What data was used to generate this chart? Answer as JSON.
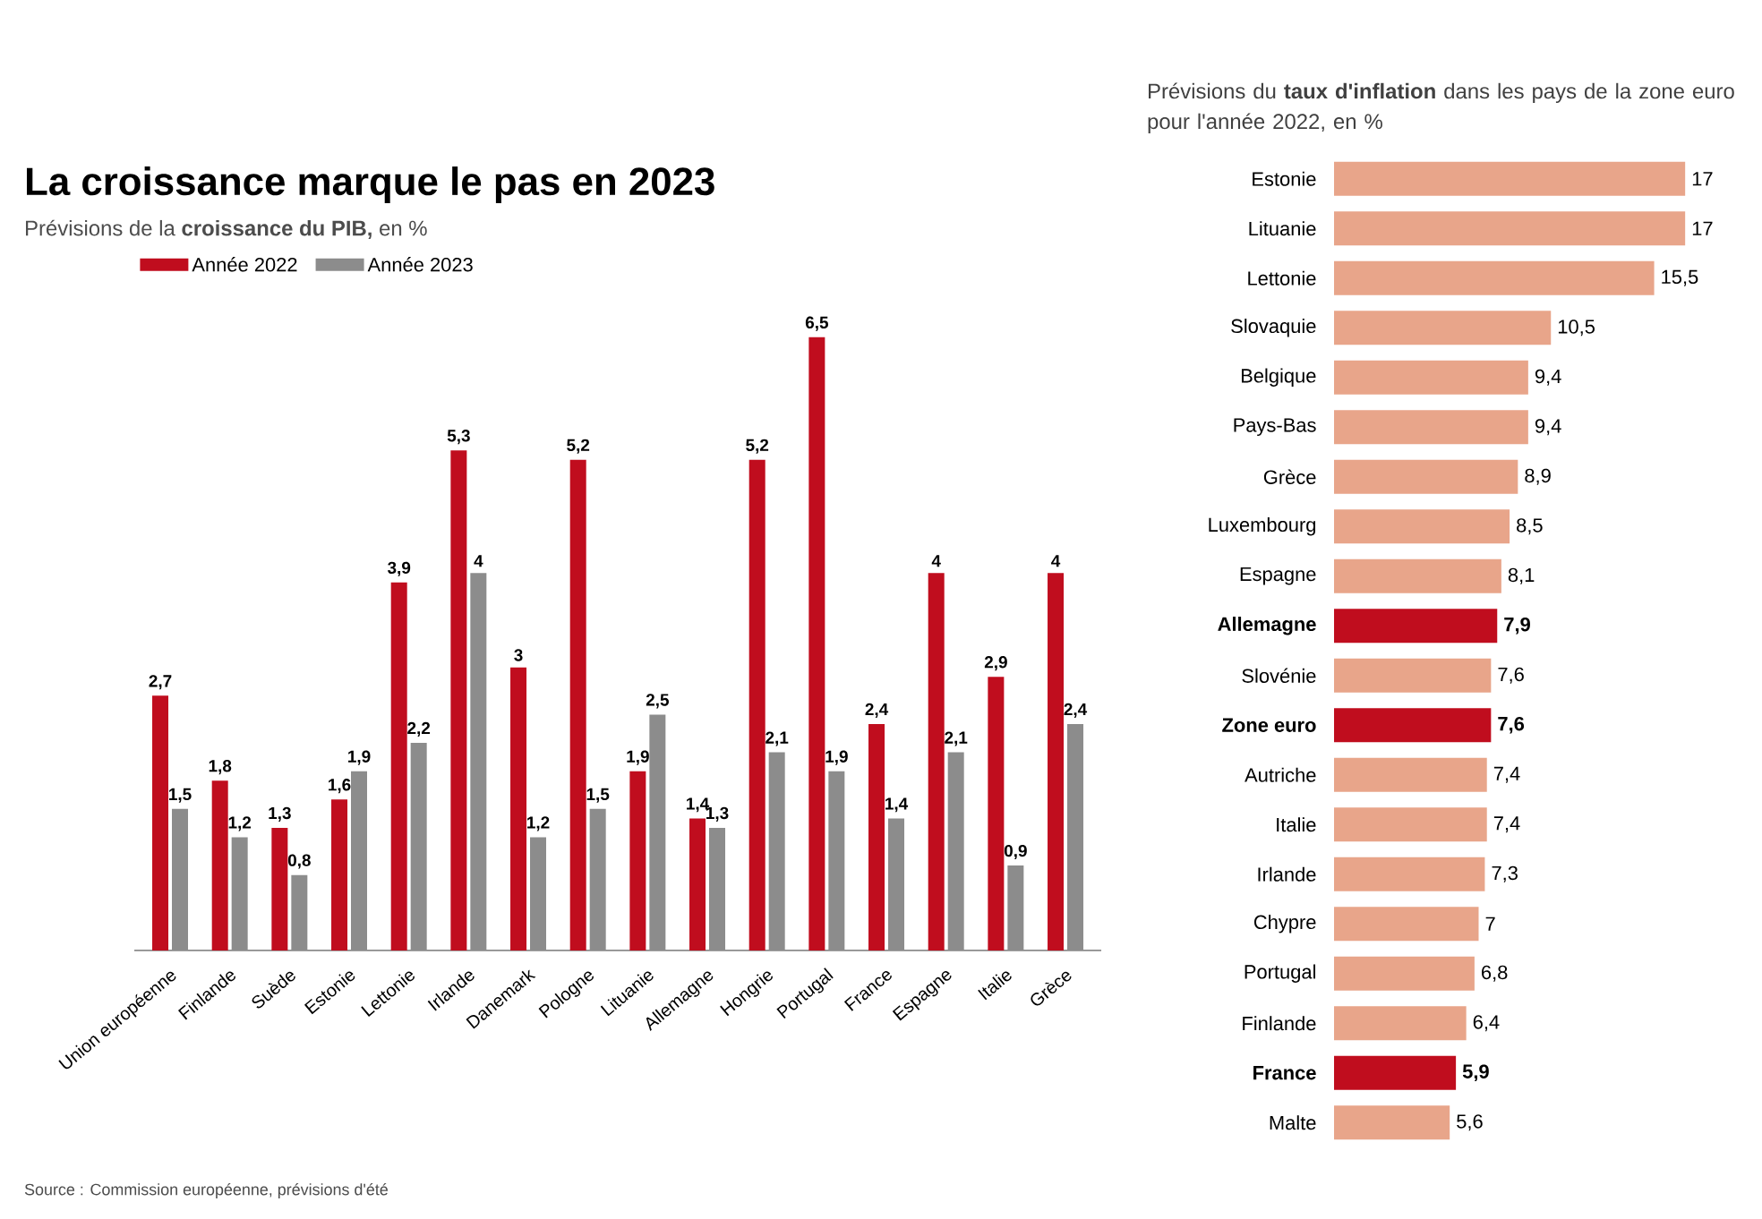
{
  "chart_data": [
    {
      "type": "bar",
      "title": "La croissance marque le pas en 2023",
      "subtitle": "Prévisions de la **croissance du PIB,** en %",
      "categories": [
        "Union européenne",
        "Finlande",
        "Suède",
        "Estonie",
        "Lettonie",
        "Irlande",
        "Danemark",
        "Pologne",
        "Lituanie",
        "Allemagne",
        "Hongrie",
        "Portugal",
        "France",
        "Espagne",
        "Italie",
        "Grèce"
      ],
      "series": [
        {
          "name": "Année 2022",
          "color": "#c00d1e",
          "values": [
            2.7,
            1.8,
            1.3,
            1.6,
            3.9,
            5.3,
            3,
            5.2,
            1.9,
            1.4,
            5.2,
            6.5,
            2.4,
            4,
            2.9,
            4
          ],
          "value_labels": [
            "2,7",
            "1,8",
            "1,3",
            "1,6",
            "3,9",
            "5,3",
            "3",
            "5,2",
            "1,9",
            "1,4",
            "5,2",
            "6,5",
            "2,4",
            "4",
            "2,9",
            "4"
          ]
        },
        {
          "name": "Année 2023",
          "color": "#8c8c8c",
          "values": [
            1.5,
            1.2,
            0.8,
            1.9,
            2.2,
            4,
            1.2,
            1.5,
            2.5,
            1.3,
            2.1,
            1.9,
            1.4,
            2.1,
            0.9,
            2.4
          ],
          "value_labels": [
            "1,5",
            "1,2",
            "0,8",
            "1,9",
            "2,2",
            "4",
            "1,2",
            "1,5",
            "2,5",
            "1,3",
            "2,1",
            "1,9",
            "1,4",
            "2,1",
            "0,9",
            "2,4"
          ]
        }
      ],
      "legend": "top left",
      "annotations": [
        "Source : Commission européenne, prévisions d'été"
      ]
    },
    {
      "type": "bar",
      "orientation": "horizontal",
      "title": "Prévisions du **taux d'inflation** dans les pays de la zone euro pour l'année 2022, en %",
      "categories": [
        "Estonie",
        "Lituanie",
        "Lettonie",
        "Slovaquie",
        "Belgique",
        "Pays-Bas",
        "Grèce",
        "Luxembourg",
        "Espagne",
        "Allemagne",
        "Slovénie",
        "Zone euro",
        "Autriche",
        "Italie",
        "Irlande",
        "Chypre",
        "Portugal",
        "Finlande",
        "France",
        "Malte"
      ],
      "values": [
        17,
        17,
        15.5,
        10.5,
        9.4,
        9.4,
        8.9,
        8.5,
        8.1,
        7.9,
        7.6,
        7.6,
        7.4,
        7.4,
        7.3,
        7,
        6.8,
        6.4,
        5.9,
        5.6
      ],
      "color": "#e8a58a",
      "colors": [
        "#e8a58a",
        "#e8a58a",
        "#e8a58a",
        "#e8a58a",
        "#e8a58a",
        "#e8a58a",
        "#e8a58a",
        "#e8a58a",
        "#e8a58a",
        "#c00d1e",
        "#e8a58a",
        "#c00d1e",
        "#e8a58a",
        "#e8a58a",
        "#e8a58a",
        "#e8a58a",
        "#e8a58a",
        "#e8a58a",
        "#c00d1e",
        "#e8a58a"
      ],
      "value_labels": [
        "17",
        "17",
        "15,5",
        "10,5",
        "9,4",
        "9,4",
        "8,9",
        "8,5",
        "8,1",
        "7,9",
        "7,6",
        "7,6",
        "7,4",
        "7,4",
        "7,3",
        "7",
        "6,8",
        "6,4",
        "5,9",
        "5,6"
      ]
    }
  ]
}
